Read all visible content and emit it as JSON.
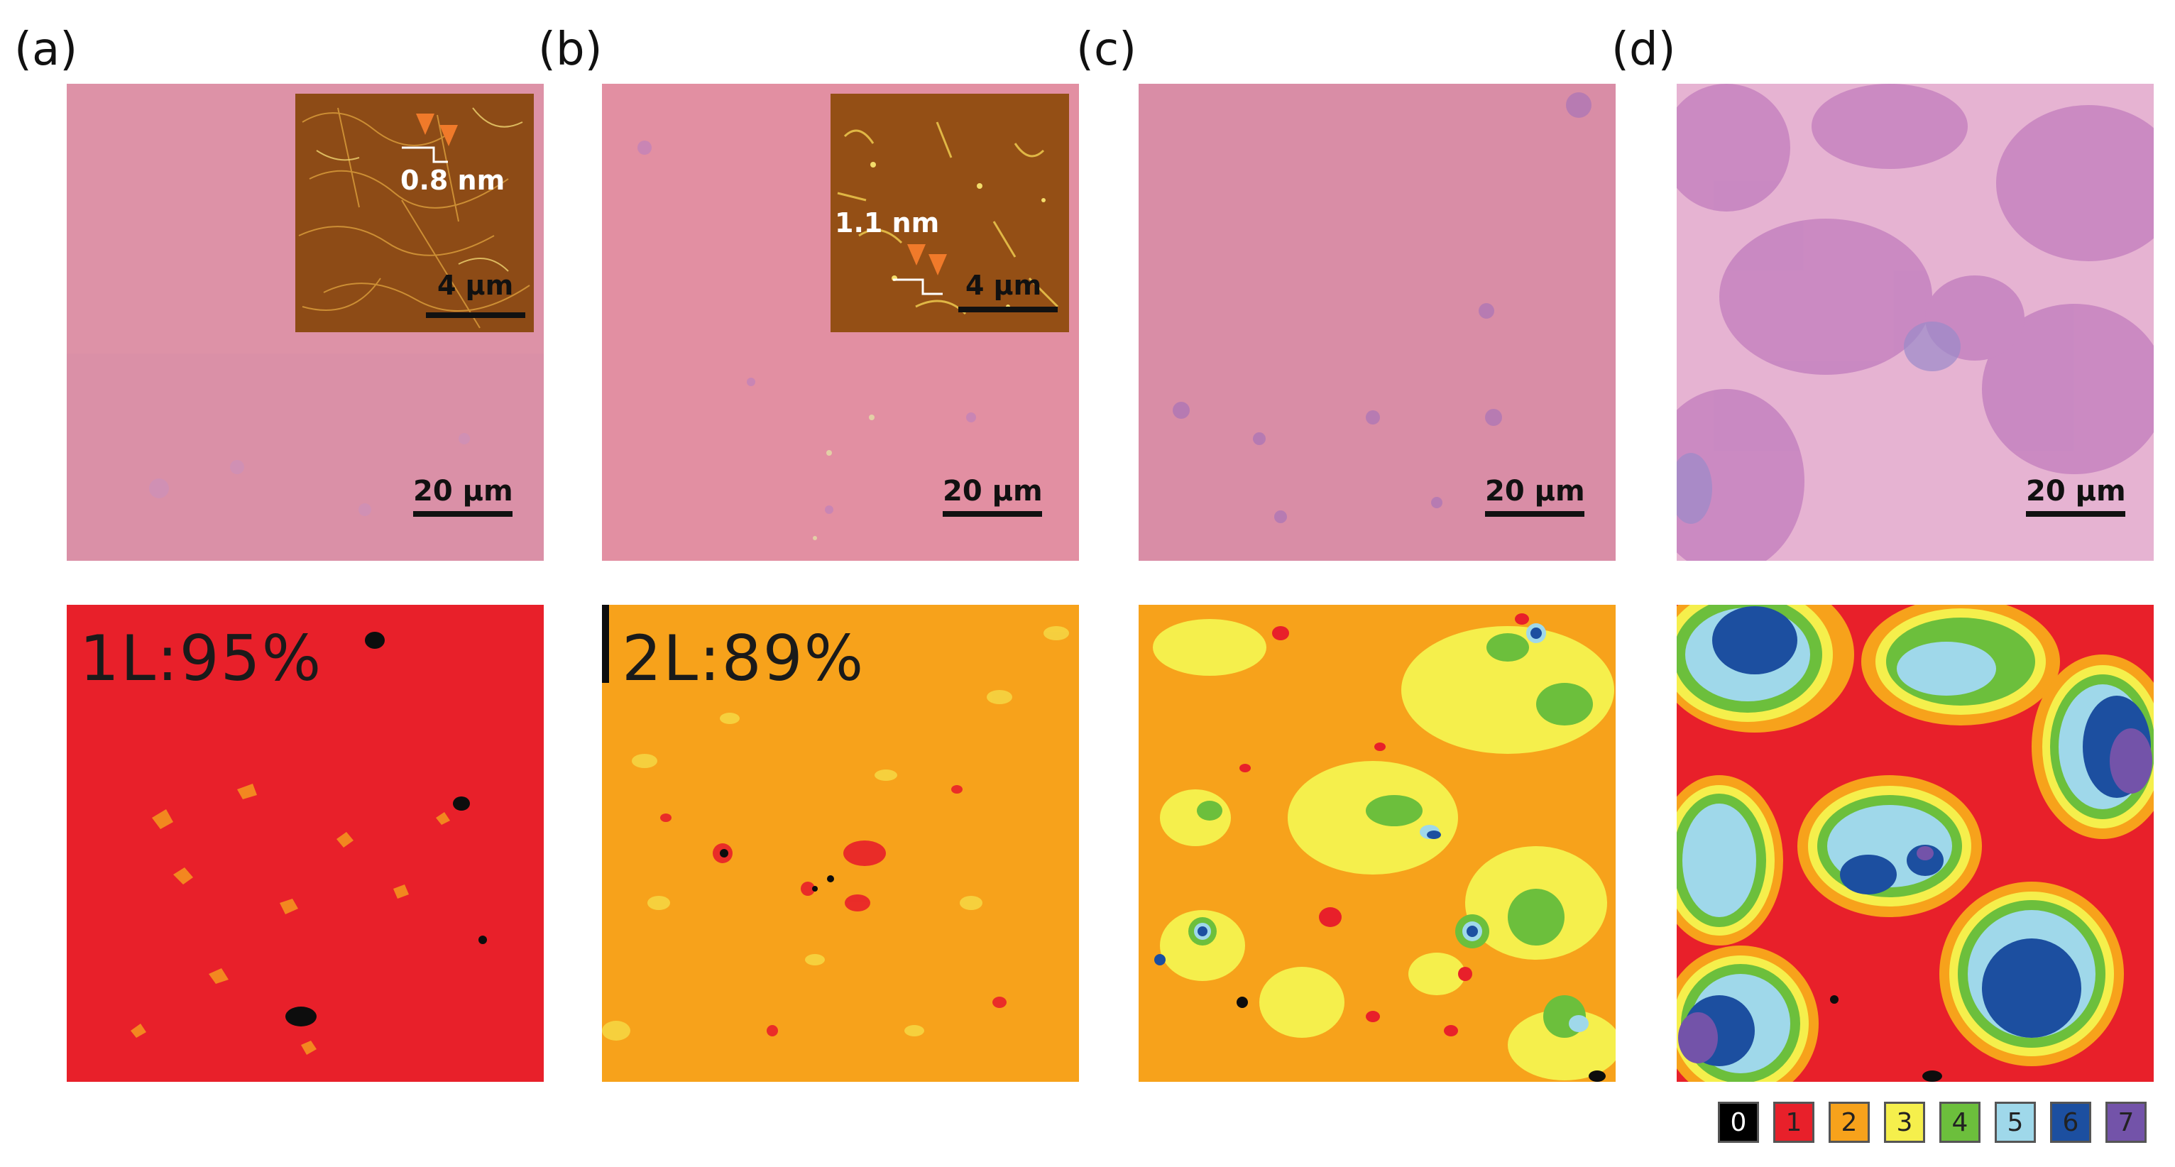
{
  "panels": [
    {
      "id": "a",
      "label": "(a)",
      "scale_bar": "20 μm",
      "inset": {
        "height": "0.8 nm",
        "scale_bar": "4 μm"
      },
      "coverage": "1L:95%"
    },
    {
      "id": "b",
      "label": "(b)",
      "scale_bar": "20 μm",
      "inset": {
        "height": "1.1 nm",
        "scale_bar": "4 μm"
      },
      "coverage": "2L:89%"
    },
    {
      "id": "c",
      "label": "(c)",
      "scale_bar": "20 μm"
    },
    {
      "id": "d",
      "label": "(d)",
      "scale_bar": "20 μm"
    }
  ],
  "legend": {
    "items": [
      {
        "value": "0",
        "color": "#000000"
      },
      {
        "value": "1",
        "color": "#e8202a"
      },
      {
        "value": "2",
        "color": "#f7a21b"
      },
      {
        "value": "3",
        "color": "#f5ef4c"
      },
      {
        "value": "4",
        "color": "#6cbf3c"
      },
      {
        "value": "5",
        "color": "#9fd8ea"
      },
      {
        "value": "6",
        "color": "#1c4fa0"
      },
      {
        "value": "7",
        "color": "#7353a9"
      }
    ]
  },
  "colors": {
    "optical_pink": "#dc8c9e",
    "optical_blob": "#c582b3",
    "afm_brown": "#8a4a14",
    "afm_bright": "#e8c24a",
    "marker_orange": "#f07a2a"
  }
}
